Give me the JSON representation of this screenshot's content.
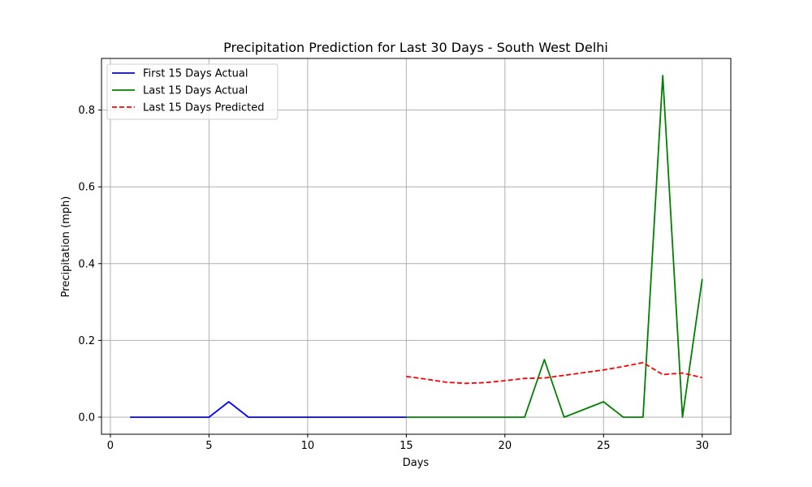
{
  "chart_data": {
    "type": "line",
    "title": "Precipitation Prediction for Last 30 Days - South West Delhi",
    "xlabel": "Days",
    "ylabel": "Precipitation (mph)",
    "xlim": [
      -0.45,
      31.45
    ],
    "ylim": [
      -0.0445,
      0.9345
    ],
    "xticks": [
      0,
      5,
      10,
      15,
      20,
      25,
      30
    ],
    "xtick_labels": [
      "0",
      "5",
      "10",
      "15",
      "20",
      "25",
      "30"
    ],
    "yticks": [
      0.0,
      0.2,
      0.4,
      0.6,
      0.8
    ],
    "ytick_labels": [
      "0.0",
      "0.2",
      "0.4",
      "0.6",
      "0.8"
    ],
    "grid": true,
    "legend_position": "upper-left",
    "series": [
      {
        "name": "First 15 Days Actual",
        "color": "#0000ff",
        "style": "solid",
        "x": [
          1,
          2,
          3,
          4,
          5,
          6,
          7,
          8,
          9,
          10,
          11,
          12,
          13,
          14,
          15
        ],
        "y": [
          0,
          0,
          0,
          0,
          0,
          0.04,
          0,
          0,
          0,
          0,
          0,
          0,
          0,
          0,
          0
        ]
      },
      {
        "name": "Last 15 Days Actual",
        "color": "#008000",
        "style": "solid",
        "x": [
          16,
          17,
          18,
          19,
          20,
          21,
          22,
          23,
          24,
          25,
          26,
          27,
          28,
          29,
          30
        ],
        "y": [
          0,
          0,
          0,
          0,
          0,
          0,
          0.15,
          0,
          0.02,
          0.04,
          0,
          0,
          0.89,
          0,
          0.36
        ],
        "segment_starts_at": [
          15,
          0
        ]
      },
      {
        "name": "Last 15 Days Predicted",
        "color": "#ff0000",
        "style": "dashed",
        "x": [
          15,
          16,
          17,
          18,
          19,
          20,
          21,
          22,
          23,
          24,
          25,
          26,
          27,
          28,
          29,
          30
        ],
        "y": [
          0.106,
          0.099,
          0.091,
          0.088,
          0.09,
          0.095,
          0.101,
          0.102,
          0.109,
          0.116,
          0.123,
          0.132,
          0.142,
          0.111,
          0.115,
          0.103
        ]
      }
    ]
  }
}
